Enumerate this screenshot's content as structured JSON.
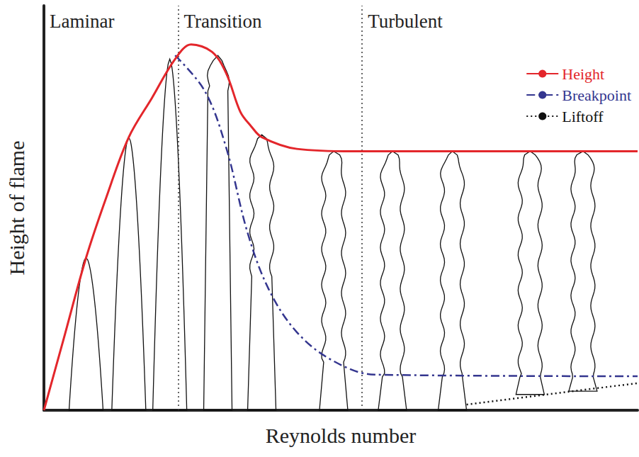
{
  "chart_data": {
    "type": "line",
    "x_label": "Reynolds number",
    "y_label": "Height of flame",
    "xlim": [
      0,
      100
    ],
    "ylim": [
      0,
      100
    ],
    "tick_labels": false,
    "grid": false,
    "legend": "upper right",
    "regions": {
      "labels": [
        "Laminar",
        "Transition",
        "Turbulent"
      ],
      "boundaries": [
        22.6,
        53.6
      ]
    },
    "series": [
      {
        "name": "Height",
        "color": "#e3262b",
        "line_style": "solid",
        "x": [
          0,
          3.3,
          7.1,
          10.5,
          14.3,
          18.2,
          22.1,
          24.8,
          28.3,
          30.7,
          33.1,
          34.9,
          36.7,
          42.6,
          52.1,
          100
        ],
        "values": [
          0,
          17.5,
          37.7,
          52.6,
          67.5,
          77.2,
          86.8,
          90.4,
          88.6,
          83.3,
          73.7,
          70.2,
          67.5,
          64.6,
          64,
          64
        ]
      },
      {
        "name": "Breakpoint",
        "color": "#34368f",
        "line_style": "dashdot",
        "x": [
          22.1,
          27.1,
          30.7,
          34.3,
          37.9,
          42.6,
          48.6,
          55.7,
          100
        ],
        "values": [
          87.7,
          78.9,
          64.9,
          43.9,
          29.8,
          19.3,
          12.3,
          8.8,
          8.4
        ]
      },
      {
        "name": "Liftoff",
        "color": "#111111",
        "line_style": "dotted",
        "x": [
          71.2,
          100
        ],
        "values": [
          1.4,
          6.7
        ]
      }
    ],
    "flames": {
      "x": [
        7.1,
        14.3,
        21.2,
        29.3,
        36.7,
        48.8,
        58.7,
        68.8,
        81.9,
        90.8
      ],
      "base": [
        0,
        0,
        0,
        0,
        0,
        0,
        0,
        0,
        3.9,
        4.7
      ],
      "height": [
        37.7,
        67.5,
        86.8,
        87.7,
        68.1,
        64,
        64,
        64,
        64,
        64
      ],
      "breakpoint": [
        37.7,
        67.5,
        86.8,
        80,
        34,
        12,
        8.5,
        8.5,
        8.5,
        8.5
      ]
    }
  }
}
